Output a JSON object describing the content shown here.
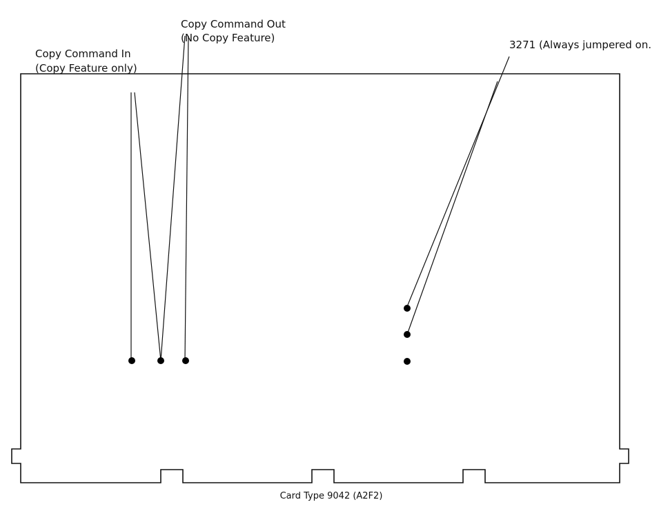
{
  "labels": {
    "copy_in_line1": "Copy Command In",
    "copy_in_line2": "(Copy Feature only)",
    "copy_out_line1": "Copy Command Out",
    "copy_out_line2": "(No Copy Feature)",
    "jumper_3271": "3271 (Always jumpered on.",
    "card_caption": "Card Type 9042 (A2F2)"
  },
  "colors": {
    "ink": "#111111",
    "background": "#ffffff"
  }
}
